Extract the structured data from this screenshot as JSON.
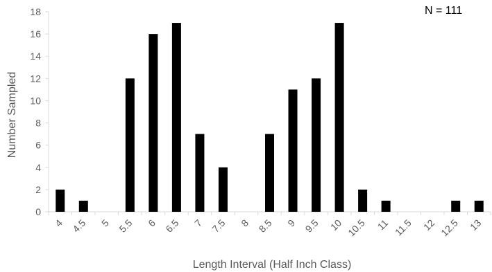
{
  "chart_data": {
    "type": "bar",
    "title": "",
    "annotation": "N = 111",
    "xlabel": "Length Interval (Half Inch Class)",
    "ylabel": "Number Sampled",
    "categories": [
      "4",
      "4.5",
      "5",
      "5.5",
      "6",
      "6.5",
      "7",
      "7.5",
      "8",
      "8.5",
      "9",
      "9.5",
      "10",
      "10.5",
      "11",
      "11.5",
      "12",
      "12.5",
      "13"
    ],
    "values": [
      2,
      1,
      0,
      12,
      16,
      17,
      7,
      4,
      0,
      7,
      11,
      12,
      17,
      2,
      1,
      0,
      0,
      1,
      1
    ],
    "ylim": [
      0,
      18
    ],
    "yticks": [
      0,
      2,
      4,
      6,
      8,
      10,
      12,
      14,
      16,
      18
    ],
    "grid": false,
    "bar_color": "#000000",
    "text_color": "#595959"
  }
}
